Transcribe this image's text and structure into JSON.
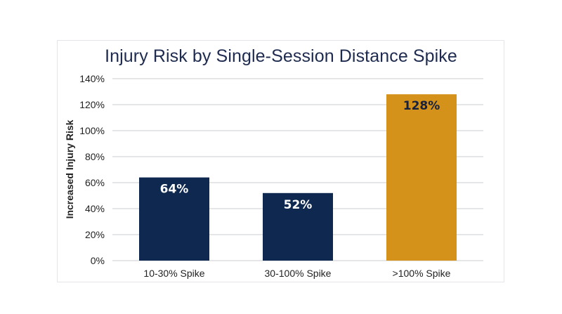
{
  "chart_data": {
    "type": "bar",
    "title": "Injury Risk by Single-Session Distance Spike",
    "xlabel": "",
    "ylabel": "Increased Injury Risk",
    "categories": [
      "10-30% Spike",
      "30-100% Spike",
      ">100% Spike"
    ],
    "values": [
      64,
      52,
      128
    ],
    "data_labels": [
      "64%",
      "52%",
      "128%"
    ],
    "ylim": [
      0,
      140
    ],
    "y_ticks": [
      0,
      20,
      40,
      60,
      80,
      100,
      120,
      140
    ],
    "y_tick_labels": [
      "0%",
      "20%",
      "40%",
      "60%",
      "80%",
      "100%",
      "120%",
      "140%"
    ],
    "grid": true,
    "legend": "none",
    "bar_colors": [
      "#0e2850",
      "#0e2850",
      "#d4921b"
    ],
    "label_colors": [
      "#ffffff",
      "#ffffff",
      "#15213f"
    ],
    "gridline_color": "#c9ccd2"
  }
}
